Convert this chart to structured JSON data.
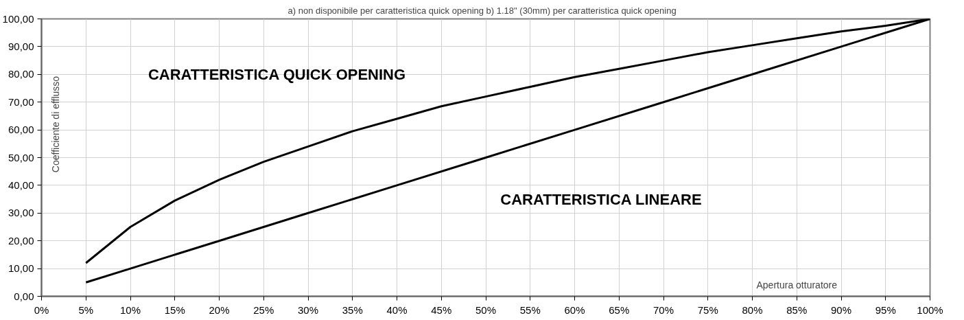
{
  "chart_data": {
    "type": "line",
    "title": "a) non disponibile per caratteristica quick opening    b) 1.18\" (30mm) per caratteristica quick opening",
    "xlabel": "Apertura otturatore",
    "ylabel": "Coefficiente di efflusso",
    "series": [
      {
        "name": "CARATTERISTICA QUICK OPENING",
        "color": "#000000",
        "x": [
          5,
          7.5,
          10,
          15,
          20,
          25,
          30,
          35,
          40,
          45,
          50,
          55,
          60,
          65,
          70,
          75,
          80,
          85,
          90,
          95,
          100
        ],
        "values": [
          12,
          18.5,
          25,
          34.5,
          42,
          48.5,
          54,
          59.5,
          64,
          68.5,
          72,
          75.5,
          79,
          82,
          85,
          88,
          90.5,
          93,
          95.5,
          97.5,
          100
        ]
      },
      {
        "name": "CARATTERISTICA LINEARE",
        "color": "#000000",
        "x": [
          5,
          10,
          20,
          30,
          40,
          50,
          60,
          70,
          80,
          90,
          100
        ],
        "values": [
          5,
          10,
          20,
          30,
          40,
          50,
          60,
          70,
          80,
          90,
          100
        ]
      }
    ],
    "xlim": [
      0,
      100
    ],
    "xticks": [
      {
        "value": 0,
        "label": "0%"
      },
      {
        "value": 5,
        "label": "5%"
      },
      {
        "value": 10,
        "label": "10%"
      },
      {
        "value": 15,
        "label": "15%"
      },
      {
        "value": 20,
        "label": "20%"
      },
      {
        "value": 25,
        "label": "25%"
      },
      {
        "value": 30,
        "label": "30%"
      },
      {
        "value": 35,
        "label": "35%"
      },
      {
        "value": 40,
        "label": "40%"
      },
      {
        "value": 45,
        "label": "45%"
      },
      {
        "value": 50,
        "label": "50%"
      },
      {
        "value": 55,
        "label": "55%"
      },
      {
        "value": 60,
        "label": "60%"
      },
      {
        "value": 65,
        "label": "65%"
      },
      {
        "value": 70,
        "label": "70%"
      },
      {
        "value": 75,
        "label": "75%"
      },
      {
        "value": 80,
        "label": "80%"
      },
      {
        "value": 85,
        "label": "85%"
      },
      {
        "value": 90,
        "label": "90%"
      },
      {
        "value": 95,
        "label": "95%"
      },
      {
        "value": 100,
        "label": "100%"
      }
    ],
    "ylim": [
      0,
      100
    ],
    "yticks": [
      {
        "value": 0,
        "label": "0,00"
      },
      {
        "value": 10,
        "label": "10,00"
      },
      {
        "value": 20,
        "label": "20,00"
      },
      {
        "value": 30,
        "label": "30,00"
      },
      {
        "value": 40,
        "label": "40,00"
      },
      {
        "value": 50,
        "label": "50,00"
      },
      {
        "value": 60,
        "label": "60,00"
      },
      {
        "value": 70,
        "label": "70,00"
      },
      {
        "value": 80,
        "label": "80,00"
      },
      {
        "value": 90,
        "label": "90,00"
      },
      {
        "value": 100,
        "label": "100,00"
      }
    ],
    "grid": true,
    "legend": false,
    "marker": "none",
    "line_style": "solid"
  }
}
